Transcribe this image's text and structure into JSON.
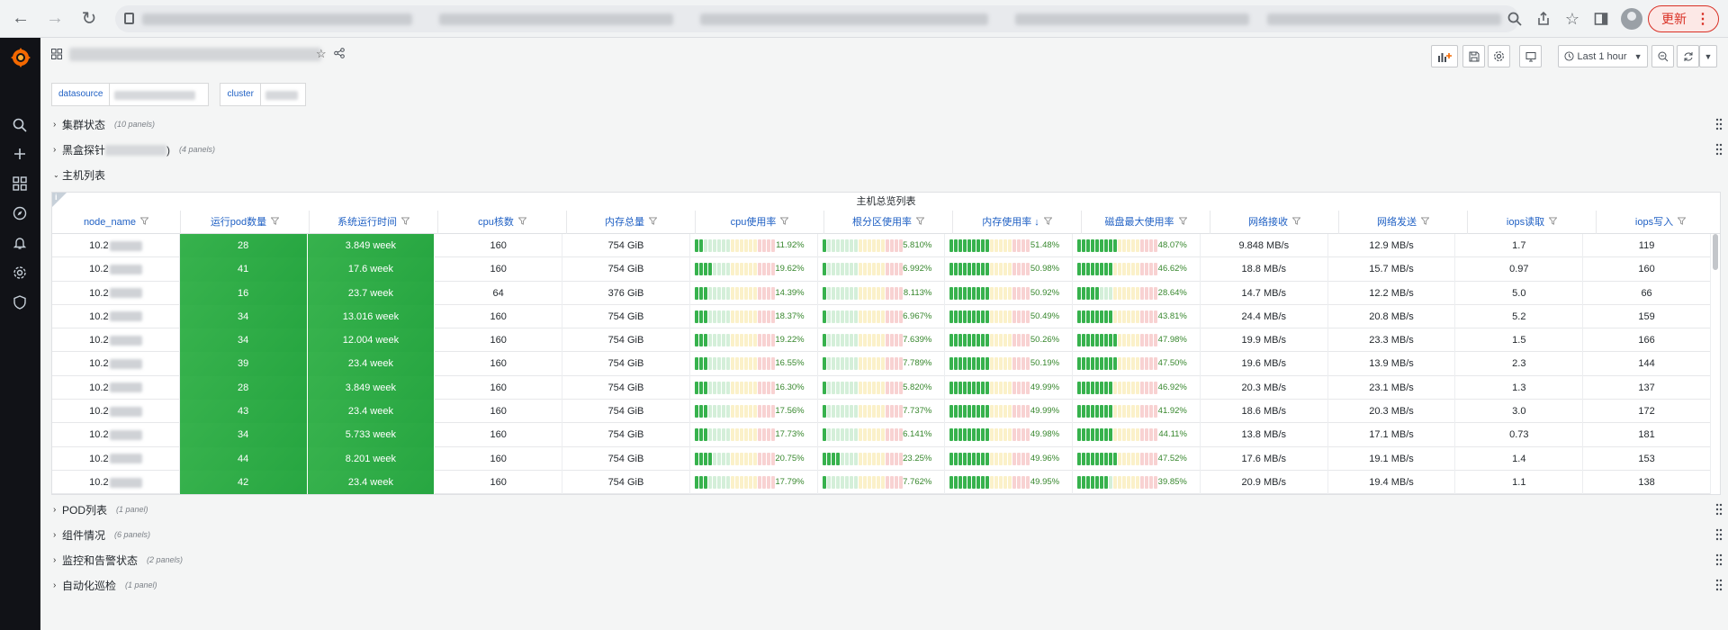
{
  "browser": {
    "update_label": "更新"
  },
  "toolbar": {
    "time_range": "Last 1 hour"
  },
  "variables": [
    {
      "label": "datasource"
    },
    {
      "label": "cluster"
    }
  ],
  "rows_top": [
    {
      "title": "集群状态",
      "count": "(10 panels)"
    },
    {
      "title": "黑盒探针",
      "title_suffix": ")",
      "count": "(4 panels)"
    },
    {
      "title": "主机列表"
    }
  ],
  "rows_bottom": [
    {
      "title": "POD列表",
      "count": "(1 panel)"
    },
    {
      "title": "组件情况",
      "count": "(6 panels)"
    },
    {
      "title": "监控和告警状态",
      "count": "(2 panels)"
    },
    {
      "title": "自动化巡检",
      "count": "(1 panel)"
    }
  ],
  "panel": {
    "title": "主机总览列表",
    "info_icon": "i",
    "columns": [
      "node_name",
      "运行pod数量",
      "系统运行时间",
      "cpu核数",
      "内存总量",
      "cpu使用率",
      "根分区使用率",
      "内存使用率 ↓",
      "磁盘最大使用率",
      "网络接收",
      "网络发送",
      "iops读取",
      "iops写入"
    ],
    "rows": [
      {
        "node": "10.2",
        "pods": "28",
        "uptime": "3.849 week",
        "cpu": "160",
        "mem": "754 GiB",
        "cpu_use": "11.92%",
        "root_use": "5.810%",
        "mem_use": "51.48%",
        "disk_use": "48.07%",
        "rx": "9.848 MB/s",
        "tx": "12.9 MB/s",
        "iops_r": "1.7",
        "iops_w": "119"
      },
      {
        "node": "10.2",
        "pods": "41",
        "uptime": "17.6 week",
        "cpu": "160",
        "mem": "754 GiB",
        "cpu_use": "19.62%",
        "root_use": "6.992%",
        "mem_use": "50.98%",
        "disk_use": "46.62%",
        "rx": "18.8 MB/s",
        "tx": "15.7 MB/s",
        "iops_r": "0.97",
        "iops_w": "160"
      },
      {
        "node": "10.2",
        "pods": "16",
        "uptime": "23.7 week",
        "cpu": "64",
        "mem": "376 GiB",
        "cpu_use": "14.39%",
        "root_use": "8.113%",
        "mem_use": "50.92%",
        "disk_use": "28.64%",
        "rx": "14.7 MB/s",
        "tx": "12.2 MB/s",
        "iops_r": "5.0",
        "iops_w": "66"
      },
      {
        "node": "10.2",
        "pods": "34",
        "uptime": "13.016 week",
        "cpu": "160",
        "mem": "754 GiB",
        "cpu_use": "18.37%",
        "root_use": "6.967%",
        "mem_use": "50.49%",
        "disk_use": "43.81%",
        "rx": "24.4 MB/s",
        "tx": "20.8 MB/s",
        "iops_r": "5.2",
        "iops_w": "159"
      },
      {
        "node": "10.2",
        "pods": "34",
        "uptime": "12.004 week",
        "cpu": "160",
        "mem": "754 GiB",
        "cpu_use": "19.22%",
        "root_use": "7.639%",
        "mem_use": "50.26%",
        "disk_use": "47.98%",
        "rx": "19.9 MB/s",
        "tx": "23.3 MB/s",
        "iops_r": "1.5",
        "iops_w": "166"
      },
      {
        "node": "10.2",
        "pods": "39",
        "uptime": "23.4 week",
        "cpu": "160",
        "mem": "754 GiB",
        "cpu_use": "16.55%",
        "root_use": "7.789%",
        "mem_use": "50.19%",
        "disk_use": "47.50%",
        "rx": "19.6 MB/s",
        "tx": "13.9 MB/s",
        "iops_r": "2.3",
        "iops_w": "144"
      },
      {
        "node": "10.2",
        "pods": "28",
        "uptime": "3.849 week",
        "cpu": "160",
        "mem": "754 GiB",
        "cpu_use": "16.30%",
        "root_use": "5.820%",
        "mem_use": "49.99%",
        "disk_use": "46.92%",
        "rx": "20.3 MB/s",
        "tx": "23.1 MB/s",
        "iops_r": "1.3",
        "iops_w": "137"
      },
      {
        "node": "10.2",
        "pods": "43",
        "uptime": "23.4 week",
        "cpu": "160",
        "mem": "754 GiB",
        "cpu_use": "17.56%",
        "root_use": "7.737%",
        "mem_use": "49.99%",
        "disk_use": "41.92%",
        "rx": "18.6 MB/s",
        "tx": "20.3 MB/s",
        "iops_r": "3.0",
        "iops_w": "172"
      },
      {
        "node": "10.2",
        "pods": "34",
        "uptime": "5.733 week",
        "cpu": "160",
        "mem": "754 GiB",
        "cpu_use": "17.73%",
        "root_use": "6.141%",
        "mem_use": "49.98%",
        "disk_use": "44.11%",
        "rx": "13.8 MB/s",
        "tx": "17.1 MB/s",
        "iops_r": "0.73",
        "iops_w": "181"
      },
      {
        "node": "10.2",
        "pods": "44",
        "uptime": "8.201 week",
        "cpu": "160",
        "mem": "754 GiB",
        "cpu_use": "20.75%",
        "root_use": "23.25%",
        "mem_use": "49.96%",
        "disk_use": "47.52%",
        "rx": "17.6 MB/s",
        "tx": "19.1 MB/s",
        "iops_r": "1.4",
        "iops_w": "153"
      },
      {
        "node": "10.2",
        "pods": "42",
        "uptime": "23.4 week",
        "cpu": "160",
        "mem": "754 GiB",
        "cpu_use": "17.79%",
        "root_use": "7.762%",
        "mem_use": "49.95%",
        "disk_use": "39.85%",
        "rx": "20.9 MB/s",
        "tx": "19.4 MB/s",
        "iops_r": "1.1",
        "iops_w": "138"
      }
    ]
  },
  "colors": {
    "green": "#37b24d",
    "gauge_on": "#37b24d",
    "gauge_off_green": "#d4efd9",
    "gauge_off_yellow": "#fbf1c9",
    "gauge_off_red": "#f8d2d2",
    "header_text": "#1f60c4"
  }
}
